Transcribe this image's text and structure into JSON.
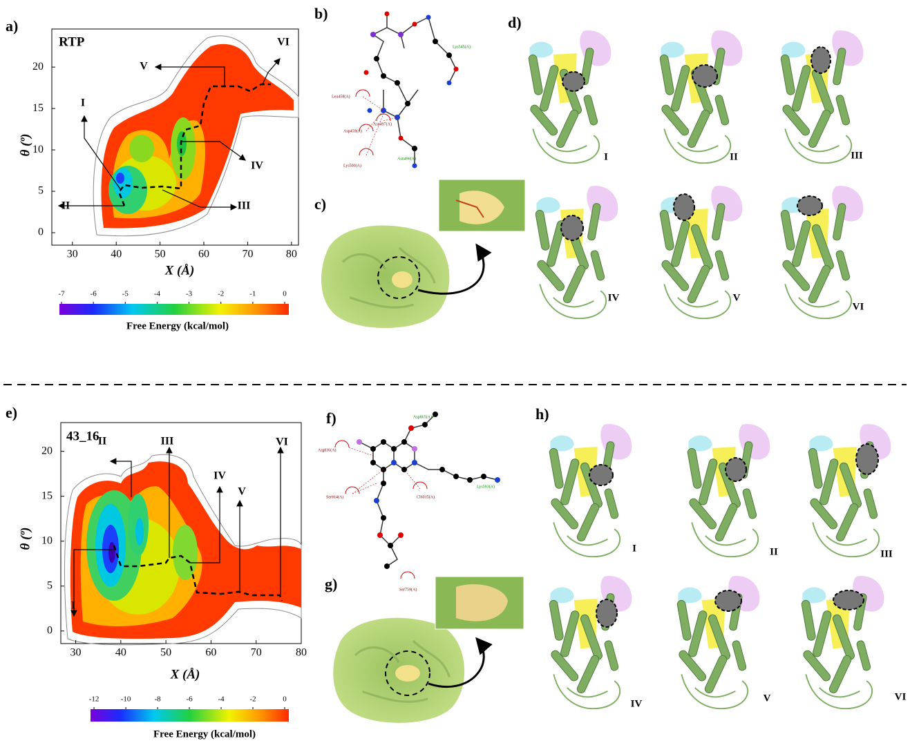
{
  "panels": {
    "a": {
      "label": "a)",
      "title": "RTP",
      "x_label": "X (Å)",
      "y_label": "θ (º)",
      "xlim": [
        25.3,
        81.6
      ],
      "xticks": [
        30,
        40,
        50,
        60,
        70,
        80
      ],
      "ylim": [
        -1.5,
        24.6
      ],
      "yticks": [
        0,
        5,
        10,
        15,
        20
      ],
      "states": [
        "I",
        "II",
        "III",
        "IV",
        "V",
        "VI"
      ],
      "colorbar": {
        "label": "Free Energy (kcal/mol)",
        "lim": [
          -7.065,
          0.13
        ],
        "ticks": [
          -7,
          -6,
          -5,
          -4,
          -3,
          -2,
          -1,
          0
        ]
      }
    },
    "b": {
      "label": "b)",
      "residues": [
        "Lys545(A)",
        "Leu458(A)",
        "Asp459(A)",
        "Asn497(A)",
        "Lys500(A)",
        "Asn496(A)"
      ]
    },
    "c": {
      "label": "c)"
    },
    "d": {
      "label": "d)",
      "states": [
        "I",
        "II",
        "III",
        "IV",
        "V",
        "VI"
      ]
    },
    "e": {
      "label": "e)",
      "title": "43_16",
      "x_label": "X (Å)",
      "y_label": "θ (º)",
      "xlim": [
        26.7,
        80
      ],
      "xticks": [
        30,
        40,
        50,
        60,
        70,
        80
      ],
      "ylim": [
        -1.4,
        23.2
      ],
      "yticks": [
        0,
        5,
        10,
        15,
        20
      ],
      "states": [
        "I",
        "II",
        "III",
        "IV",
        "V",
        "VI"
      ],
      "colorbar": {
        "label": "Free Energy (kcal/mol)",
        "lim": [
          -12.22,
          0.26
        ],
        "ticks": [
          -12,
          -10,
          -8,
          -6,
          -4,
          -2,
          0
        ]
      }
    },
    "f": {
      "label": "f)",
      "residues": [
        "Asp865(A)",
        "Arg836(A)",
        "Ser814(A)",
        "Lys593(A)",
        "Cl6015(A)",
        "Ser759(A)"
      ]
    },
    "g": {
      "label": "g)"
    },
    "h": {
      "label": "h)",
      "states": [
        "I",
        "II",
        "III",
        "IV",
        "V",
        "VI"
      ]
    }
  }
}
